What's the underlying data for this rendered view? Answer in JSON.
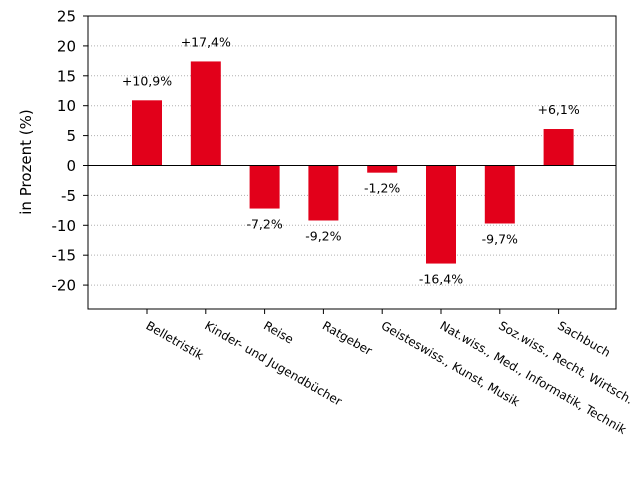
{
  "chart_data": {
    "type": "bar",
    "title": "",
    "xlabel": "",
    "ylabel": "in Prozent (%)",
    "ylim": [
      -24,
      25
    ],
    "yticks": [
      25,
      20,
      15,
      10,
      5,
      0,
      -5,
      -10,
      -15,
      -20
    ],
    "grid": true,
    "categories": [
      "Belletristik",
      "Kinder- und Jugendbücher",
      "Reise",
      "Ratgeber",
      "Geisteswiss., Kunst, Musik",
      "Nat.wiss., Med., Informatik, Technik",
      "Soz.wiss., Recht, Wirtsch.",
      "Sachbuch"
    ],
    "values": [
      10.9,
      17.4,
      -7.2,
      -9.2,
      -1.2,
      -16.4,
      -9.7,
      6.1
    ],
    "data_labels": [
      "+10,9%",
      "+17,4%",
      "-7,2%",
      "-9,2%",
      "-1,2%",
      "-16,4%",
      "-9,7%",
      "+6,1%"
    ],
    "bar_color": "#e2001a"
  }
}
